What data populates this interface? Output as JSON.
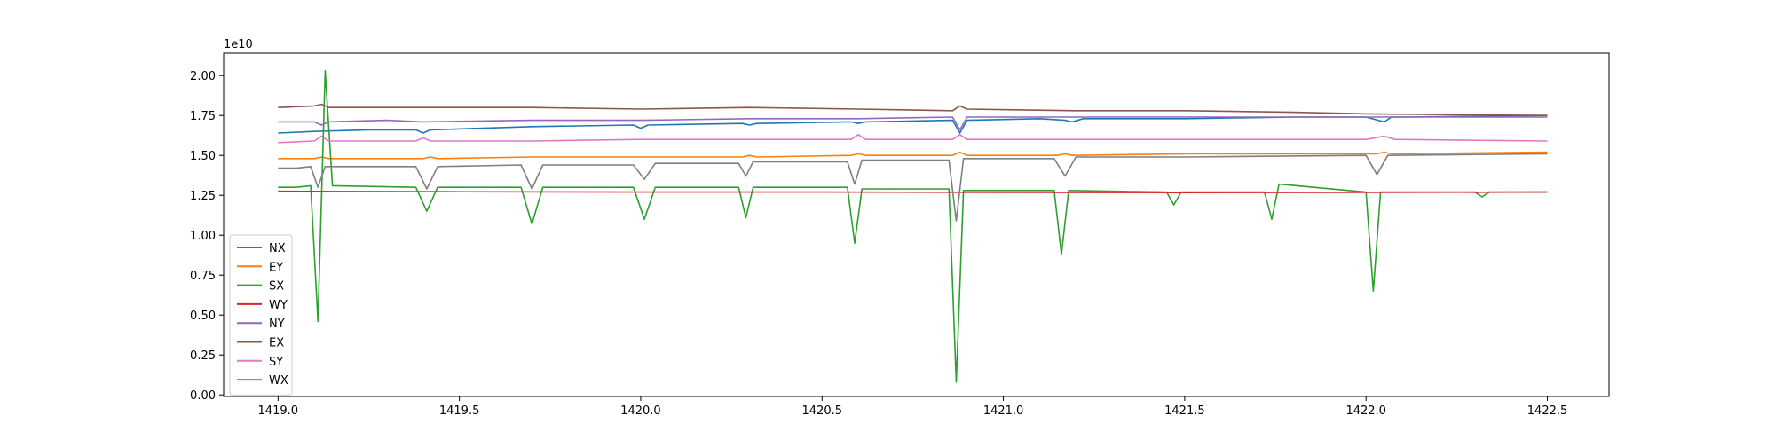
{
  "chart_data": {
    "type": "line",
    "title": "",
    "xlabel": "",
    "ylabel": "",
    "y_offset_label": "1e10",
    "y_scale": 10000000000.0,
    "xlim": [
      1418.85,
      1422.67
    ],
    "ylim": [
      -0.01,
      2.14
    ],
    "xticks": [
      1419.0,
      1419.5,
      1420.0,
      1420.5,
      1421.0,
      1421.5,
      1422.0,
      1422.5
    ],
    "xtick_labels": [
      "1419.0",
      "1419.5",
      "1420.0",
      "1420.5",
      "1421.0",
      "1421.5",
      "1422.0",
      "1422.5"
    ],
    "yticks": [
      0.0,
      0.25,
      0.5,
      0.75,
      1.0,
      1.25,
      1.5,
      1.75,
      2.0
    ],
    "ytick_labels": [
      "0.00",
      "0.25",
      "0.50",
      "0.75",
      "1.00",
      "1.25",
      "1.50",
      "1.75",
      "2.00"
    ],
    "grid": false,
    "legend_position": "lower-left",
    "series": [
      {
        "name": "NX",
        "color": "#1f77b4",
        "x": [
          1419.0,
          1419.1,
          1419.25,
          1419.38,
          1419.4,
          1419.42,
          1419.7,
          1419.98,
          1420.0,
          1420.02,
          1420.28,
          1420.3,
          1420.32,
          1420.58,
          1420.6,
          1420.62,
          1420.86,
          1420.88,
          1420.9,
          1421.1,
          1421.17,
          1421.19,
          1421.22,
          1421.5,
          1421.8,
          1422.0,
          1422.05,
          1422.07,
          1422.1,
          1422.5
        ],
        "y": [
          1.64,
          1.65,
          1.66,
          1.66,
          1.64,
          1.66,
          1.68,
          1.69,
          1.67,
          1.69,
          1.7,
          1.69,
          1.7,
          1.71,
          1.7,
          1.71,
          1.72,
          1.64,
          1.72,
          1.73,
          1.72,
          1.71,
          1.73,
          1.73,
          1.74,
          1.74,
          1.71,
          1.74,
          1.74,
          1.75
        ]
      },
      {
        "name": "EY",
        "color": "#ff7f0e",
        "x": [
          1419.0,
          1419.1,
          1419.12,
          1419.14,
          1419.4,
          1419.42,
          1419.44,
          1419.7,
          1420.0,
          1420.28,
          1420.3,
          1420.32,
          1420.58,
          1420.6,
          1420.62,
          1420.86,
          1420.88,
          1420.9,
          1421.15,
          1421.17,
          1421.19,
          1421.5,
          1422.0,
          1422.03,
          1422.05,
          1422.07,
          1422.5
        ],
        "y": [
          1.48,
          1.48,
          1.49,
          1.48,
          1.48,
          1.49,
          1.48,
          1.49,
          1.49,
          1.49,
          1.5,
          1.49,
          1.5,
          1.51,
          1.5,
          1.5,
          1.52,
          1.5,
          1.5,
          1.51,
          1.5,
          1.51,
          1.51,
          1.51,
          1.52,
          1.51,
          1.52
        ]
      },
      {
        "name": "SX",
        "color": "#2ca02c",
        "x": [
          1419.0,
          1419.05,
          1419.09,
          1419.11,
          1419.13,
          1419.15,
          1419.38,
          1419.41,
          1419.44,
          1419.67,
          1419.7,
          1419.73,
          1419.98,
          1420.01,
          1420.04,
          1420.27,
          1420.29,
          1420.31,
          1420.57,
          1420.59,
          1420.61,
          1420.85,
          1420.87,
          1420.89,
          1421.14,
          1421.16,
          1421.18,
          1421.45,
          1421.47,
          1421.49,
          1421.72,
          1421.74,
          1421.76,
          1422.0,
          1422.02,
          1422.04,
          1422.3,
          1422.32,
          1422.34,
          1422.5
        ],
        "y": [
          1.3,
          1.3,
          1.31,
          0.46,
          2.03,
          1.31,
          1.3,
          1.15,
          1.3,
          1.3,
          1.07,
          1.3,
          1.3,
          1.1,
          1.3,
          1.3,
          1.11,
          1.3,
          1.3,
          0.95,
          1.29,
          1.29,
          0.08,
          1.28,
          1.28,
          0.88,
          1.28,
          1.27,
          1.19,
          1.27,
          1.27,
          1.1,
          1.32,
          1.27,
          0.65,
          1.27,
          1.27,
          1.24,
          1.27,
          1.27
        ]
      },
      {
        "name": "WY",
        "color": "#d62728",
        "x": [
          1419.0,
          1419.5,
          1420.0,
          1420.5,
          1421.0,
          1421.5,
          1422.0,
          1422.5
        ],
        "y": [
          1.275,
          1.272,
          1.27,
          1.27,
          1.268,
          1.267,
          1.268,
          1.27
        ]
      },
      {
        "name": "NY",
        "color": "#9467bd",
        "x": [
          1419.0,
          1419.1,
          1419.12,
          1419.14,
          1419.3,
          1419.4,
          1419.7,
          1420.0,
          1420.3,
          1420.6,
          1420.86,
          1420.88,
          1420.9,
          1421.2,
          1421.5,
          1421.8,
          1422.05,
          1422.5
        ],
        "y": [
          1.71,
          1.71,
          1.69,
          1.71,
          1.72,
          1.71,
          1.72,
          1.72,
          1.73,
          1.73,
          1.74,
          1.66,
          1.74,
          1.74,
          1.74,
          1.74,
          1.74,
          1.74
        ]
      },
      {
        "name": "EX",
        "color": "#8c564b",
        "x": [
          1419.0,
          1419.1,
          1419.12,
          1419.14,
          1419.4,
          1419.7,
          1420.0,
          1420.3,
          1420.6,
          1420.86,
          1420.88,
          1420.9,
          1421.2,
          1421.5,
          1421.8,
          1422.0,
          1422.5
        ],
        "y": [
          1.8,
          1.81,
          1.82,
          1.8,
          1.8,
          1.8,
          1.79,
          1.8,
          1.79,
          1.78,
          1.81,
          1.79,
          1.78,
          1.78,
          1.77,
          1.76,
          1.75
        ]
      },
      {
        "name": "SY",
        "color": "#e377c2",
        "x": [
          1419.0,
          1419.1,
          1419.12,
          1419.14,
          1419.38,
          1419.4,
          1419.42,
          1419.7,
          1420.0,
          1420.58,
          1420.6,
          1420.62,
          1420.86,
          1420.88,
          1420.9,
          1421.2,
          1421.5,
          1422.0,
          1422.05,
          1422.08,
          1422.5
        ],
        "y": [
          1.58,
          1.59,
          1.62,
          1.59,
          1.59,
          1.61,
          1.59,
          1.59,
          1.6,
          1.6,
          1.63,
          1.6,
          1.6,
          1.63,
          1.6,
          1.6,
          1.6,
          1.6,
          1.62,
          1.6,
          1.59
        ]
      },
      {
        "name": "WX",
        "color": "#7f7f7f",
        "x": [
          1419.0,
          1419.05,
          1419.09,
          1419.11,
          1419.13,
          1419.15,
          1419.38,
          1419.41,
          1419.44,
          1419.67,
          1419.7,
          1419.73,
          1419.98,
          1420.01,
          1420.04,
          1420.27,
          1420.29,
          1420.31,
          1420.57,
          1420.59,
          1420.61,
          1420.85,
          1420.87,
          1420.89,
          1421.14,
          1421.17,
          1421.2,
          1421.5,
          1422.0,
          1422.03,
          1422.06,
          1422.5
        ],
        "y": [
          1.42,
          1.42,
          1.43,
          1.3,
          1.43,
          1.43,
          1.43,
          1.29,
          1.43,
          1.44,
          1.29,
          1.44,
          1.44,
          1.35,
          1.45,
          1.45,
          1.37,
          1.46,
          1.46,
          1.32,
          1.47,
          1.47,
          1.09,
          1.48,
          1.48,
          1.37,
          1.49,
          1.49,
          1.5,
          1.38,
          1.5,
          1.51
        ]
      }
    ]
  }
}
